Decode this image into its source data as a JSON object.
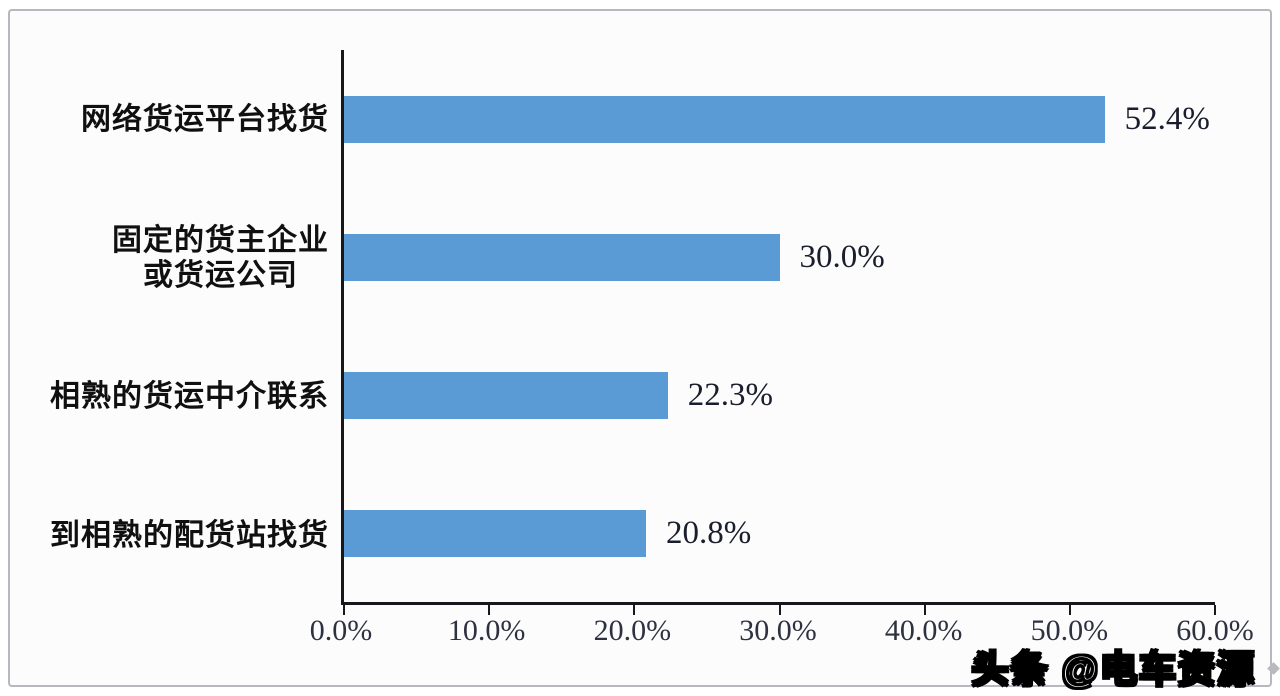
{
  "chart_data": {
    "type": "bar",
    "orientation": "horizontal",
    "title": "",
    "categories": [
      "网络货运平台找货",
      "固定的货主企业\n或货运公司",
      "相熟的货运中介联系",
      "到相熟的配货站找货"
    ],
    "values": [
      52.4,
      30.0,
      22.3,
      20.8
    ],
    "value_labels": [
      "52.4%",
      "30.0%",
      "22.3%",
      "20.8%"
    ],
    "xlabel": "",
    "ylabel": "",
    "xlim": [
      0,
      60
    ],
    "x_ticks": [
      "0.0%",
      "10.0%",
      "20.0%",
      "30.0%",
      "40.0%",
      "50.0%",
      "60.0%"
    ],
    "grid": false,
    "legend": "none",
    "bar_color": "#5B9BD5",
    "axis_color": "#17181c"
  },
  "watermark": {
    "text": "头条 @电车资源",
    "text_color": "#ffffff",
    "outline_color": "#000000"
  },
  "frame": {
    "border_color": "#b7b8bf",
    "background": "#fcfcfd"
  }
}
